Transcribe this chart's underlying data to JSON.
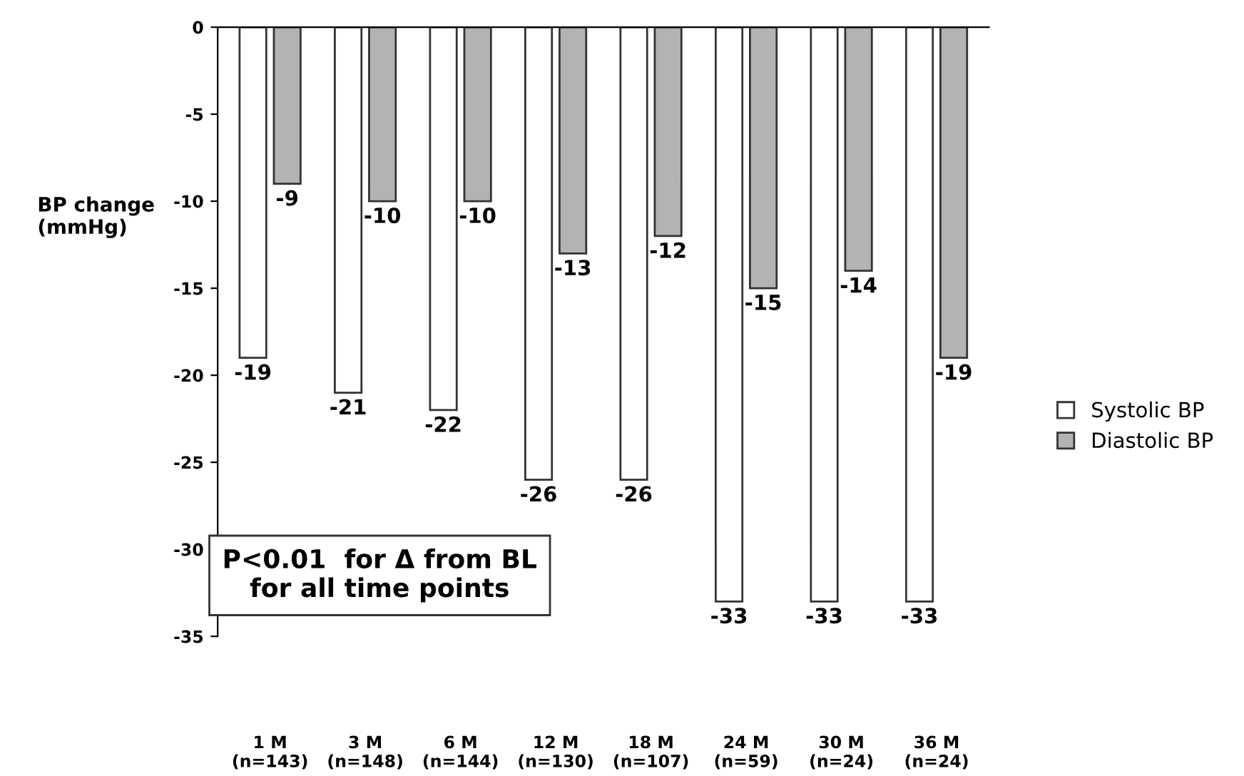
{
  "chart_data": {
    "type": "bar",
    "categories": [
      "1 M\n(n=143)",
      "3 M\n(n=148)",
      "6 M\n(n=144)",
      "12 M\n(n=130)",
      "18 M\n(n=107)",
      "24 M\n(n=59)",
      "30 M\n(n=24)",
      "36 M\n(n=24)"
    ],
    "series": [
      {
        "name": "Systolic BP",
        "color": "#ffffff",
        "values": [
          -19,
          -21,
          -22,
          -26,
          -26,
          -33,
          -33,
          -33
        ]
      },
      {
        "name": "Diastolic BP",
        "color": "#b3b3b3",
        "values": [
          -9,
          -10,
          -10,
          -13,
          -12,
          -15,
          -14,
          -19
        ]
      }
    ],
    "ylabel": "BP change\n(mmHg)",
    "ylim": [
      -35,
      0
    ],
    "yticks": [
      0,
      -5,
      -10,
      -15,
      -20,
      -25,
      -30,
      -35
    ],
    "data_labels": true,
    "grid": false,
    "legend": "right",
    "annotations": [
      "P<0.01  for Δ from BL\nfor all time points"
    ]
  }
}
